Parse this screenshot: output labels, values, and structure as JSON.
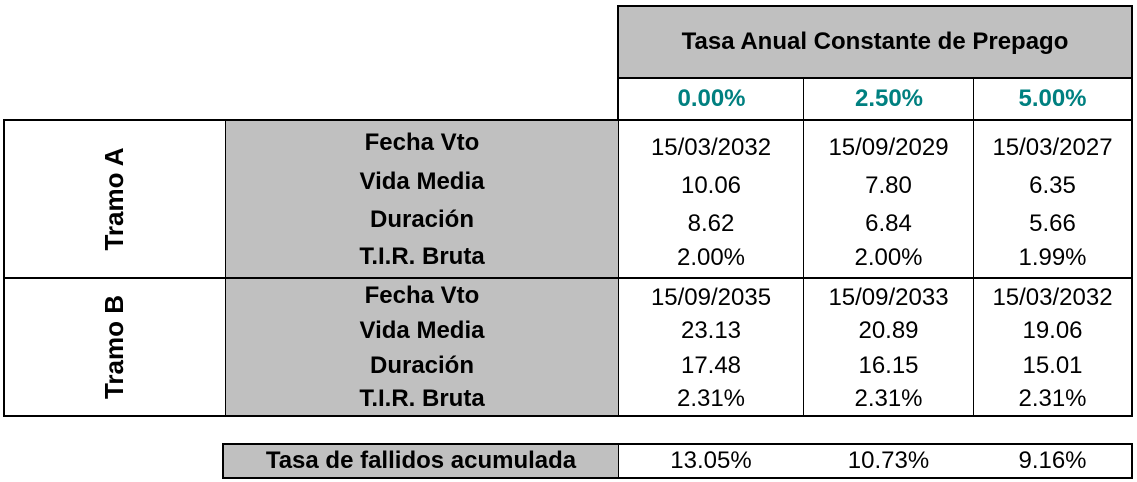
{
  "header": {
    "title": "Tasa Anual Constante de Prepago",
    "rates": [
      "0.00%",
      "2.50%",
      "5.00%"
    ]
  },
  "tramos": [
    {
      "name": "Tramo A",
      "rows": [
        {
          "label": "Fecha Vto",
          "values": [
            "15/03/2032",
            "15/09/2029",
            "15/03/2027"
          ]
        },
        {
          "label": "Vida Media",
          "values": [
            "10.06",
            "7.80",
            "6.35"
          ]
        },
        {
          "label": "Duración",
          "values": [
            "8.62",
            "6.84",
            "5.66"
          ]
        },
        {
          "label": "T.I.R. Bruta",
          "values": [
            "2.00%",
            "2.00%",
            "1.99%"
          ]
        }
      ]
    },
    {
      "name": "Tramo B",
      "rows": [
        {
          "label": "Fecha Vto",
          "values": [
            "15/09/2035",
            "15/09/2033",
            "15/03/2032"
          ]
        },
        {
          "label": "Vida Media",
          "values": [
            "23.13",
            "20.89",
            "19.06"
          ]
        },
        {
          "label": "Duración",
          "values": [
            "17.48",
            "16.15",
            "15.01"
          ]
        },
        {
          "label": "T.I.R. Bruta",
          "values": [
            "2.31%",
            "2.31%",
            "2.31%"
          ]
        }
      ]
    }
  ],
  "fallidos": {
    "label": "Tasa de fallidos acumulada",
    "values": [
      "13.05%",
      "10.73%",
      "9.16%"
    ]
  },
  "colors": {
    "header_gray": "#c0c0c0",
    "rate_teal": "#008080"
  }
}
